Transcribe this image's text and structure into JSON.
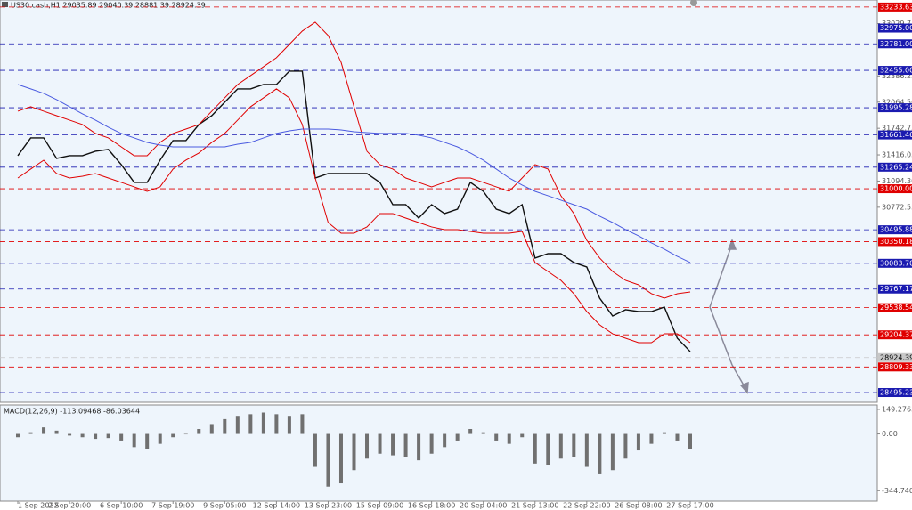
{
  "chart_data": [
    {
      "type": "line",
      "title": "US30.cash,H1  29035.89 29040.39 28881.39 28924.39",
      "categories": [
        "1 Sep 2022",
        null,
        null,
        null,
        "2 Sep 20:00",
        null,
        null,
        null,
        "6 Sep 10:00",
        null,
        null,
        null,
        "7 Sep 19:00",
        null,
        null,
        null,
        "9 Sep 05:00",
        null,
        null,
        null,
        "12 Sep 14:00",
        null,
        null,
        null,
        "13 Sep 23:00",
        null,
        null,
        null,
        "15 Sep 09:00",
        null,
        null,
        null,
        "16 Sep 18:00",
        null,
        null,
        null,
        "20 Sep 04:00",
        null,
        null,
        null,
        "21 Sep 13:00",
        null,
        null,
        null,
        "22 Sep 22:00",
        null,
        null,
        null,
        "26 Sep 08:00",
        null,
        null,
        null,
        "27 Sep 17:00"
      ],
      "series": [
        {
          "color": "#101010",
          "values": [
            31406,
            31625,
            31625,
            31373,
            31406,
            31406,
            31461,
            31483,
            31297,
            31078,
            31078,
            31351,
            31592,
            31592,
            31789,
            31898,
            32063,
            32227,
            32227,
            32281,
            32281,
            32446,
            32446,
            31132,
            31187,
            31187,
            31187,
            31187,
            31078,
            30804,
            30804,
            30640,
            30804,
            30695,
            30749,
            31078,
            30968,
            30749,
            30695,
            30804,
            30148,
            30202,
            30202,
            30093,
            30038,
            29655,
            29436,
            29513,
            29491,
            29491,
            29546,
            29163,
            28998
          ]
        },
        {
          "color": "#e00000",
          "values": [
            31953,
            32008,
            31953,
            31898,
            31844,
            31789,
            31680,
            31625,
            31515,
            31406,
            31406,
            31570,
            31680,
            31734,
            31789,
            31953,
            32117,
            32281,
            32391,
            32500,
            32610,
            32774,
            32938,
            33047,
            32883,
            32555,
            32008,
            31461,
            31297,
            31242,
            31132,
            31078,
            31023,
            31078,
            31132,
            31132,
            31078,
            31023,
            30968,
            31132,
            31297,
            31242,
            30914,
            30695,
            30366,
            30148,
            29983,
            29874,
            29819,
            29710,
            29655,
            29710,
            29732
          ]
        },
        {
          "color": "#e00000",
          "values": [
            31132,
            31242,
            31351,
            31187,
            31132,
            31154,
            31187,
            31132,
            31078,
            31023,
            30968,
            31023,
            31242,
            31351,
            31439,
            31570,
            31680,
            31844,
            32008,
            32117,
            32227,
            32117,
            31789,
            31132,
            30585,
            30454,
            30454,
            30531,
            30695,
            30695,
            30640,
            30585,
            30531,
            30498,
            30498,
            30476,
            30454,
            30454,
            30454,
            30476,
            30093,
            29983,
            29874,
            29710,
            29491,
            29327,
            29217,
            29163,
            29108,
            29108,
            29217,
            29217,
            29108
          ]
        },
        {
          "color": "#4a5ae0",
          "values": [
            32281,
            32227,
            32172,
            32095,
            32008,
            31920,
            31844,
            31756,
            31680,
            31625,
            31570,
            31537,
            31515,
            31515,
            31515,
            31515,
            31515,
            31548,
            31570,
            31625,
            31680,
            31712,
            31734,
            31734,
            31734,
            31723,
            31701,
            31690,
            31680,
            31680,
            31680,
            31658,
            31625,
            31570,
            31515,
            31439,
            31351,
            31242,
            31132,
            31045,
            30968,
            30914,
            30859,
            30804,
            30749,
            30662,
            30585,
            30498,
            30421,
            30334,
            30258,
            30169,
            30093
          ]
        }
      ],
      "ylim": [
        28375,
        33320
      ],
      "yticks": [
        33029.75,
        32386.25,
        {
          "value": 32064.5,
          "label": "32064.50"
        },
        31742.75,
        31416.05,
        {
          "value": 31094.3,
          "label": "31094.30"
        },
        30772.55
      ],
      "levels": [
        {
          "value": 33233.63,
          "label": "33233.63",
          "color": "#e00000"
        },
        {
          "value": 32975,
          "label": "32975.00",
          "color": "#1a1ab0"
        },
        {
          "value": 32781,
          "label": "32781.00",
          "color": "#1a1ab0"
        },
        {
          "value": 32455,
          "label": "32455.00",
          "color": "#1a1ab0"
        },
        {
          "value": 31995.28,
          "label": "31995.28",
          "color": "#1a1ab0"
        },
        {
          "value": 31661.46,
          "label": "31661.46",
          "color": "#1a1ab0"
        },
        {
          "value": 31265.24,
          "label": "31265.24",
          "color": "#1a1ab0"
        },
        {
          "value": 31000,
          "label": "31000.00",
          "color": "#e00000"
        },
        {
          "value": 30495.88,
          "label": "30495.88",
          "color": "#1a1ab0"
        },
        {
          "value": 30350.18,
          "label": "30350.18",
          "color": "#e00000"
        },
        {
          "value": 30083.7,
          "label": "30083.70",
          "color": "#1a1ab0"
        },
        {
          "value": 29767.17,
          "label": "29767.17",
          "color": "#1a1ab0"
        },
        {
          "value": 29538.54,
          "label": "29538.54",
          "color": "#e00000"
        },
        {
          "value": 29204.37,
          "label": "29204.37",
          "color": "#e00000"
        },
        {
          "value": 28924.39,
          "label": "28924.39",
          "color": "#c8c8c8"
        },
        {
          "value": 28809.33,
          "label": "28809.33",
          "color": "#e00000"
        },
        {
          "value": 28495.23,
          "label": "28495.23",
          "color": "#1a1ab0"
        }
      ]
    },
    {
      "type": "bar",
      "title": "MACD(12,26,9) -113.09468 -86.03644",
      "color": "#707070",
      "values": [
        -20,
        10,
        40,
        20,
        -10,
        -20,
        -30,
        -25,
        -40,
        -80,
        -90,
        -60,
        -20,
        0,
        30,
        60,
        90,
        110,
        120,
        130,
        120,
        110,
        120,
        -200,
        -320,
        -300,
        -220,
        -150,
        -120,
        -130,
        -140,
        -160,
        -120,
        -80,
        -40,
        30,
        10,
        -40,
        -60,
        -20,
        -180,
        -190,
        -150,
        -140,
        -200,
        -240,
        -220,
        -150,
        -100,
        -60,
        10,
        -40,
        -90
      ],
      "ylim": [
        -408,
        176
      ],
      "yticks": [
        149.27659,
        {
          "value": 0,
          "label": "0.00"
        },
        -344.74041
      ]
    }
  ]
}
